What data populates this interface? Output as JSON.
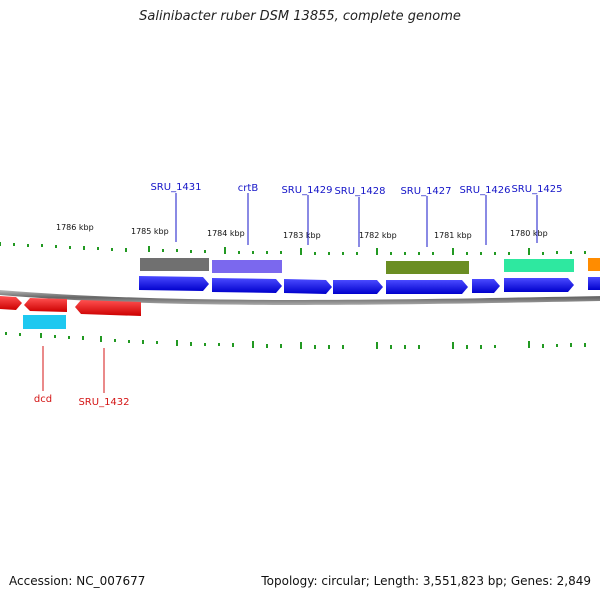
{
  "title": "Salinibacter ruber DSM 13855, complete genome",
  "footer": {
    "accession": "Accession: NC_007677",
    "summary": "Topology: circular; Length: 3,551,823 bp; Genes: 2,849"
  },
  "ruler": {
    "unit": "kbp",
    "labels": [
      {
        "text": "1786 kbp",
        "kbp": 1786
      },
      {
        "text": "1785 kbp",
        "kbp": 1785
      },
      {
        "text": "1784 kbp",
        "kbp": 1784
      },
      {
        "text": "1783 kbp",
        "kbp": 1783
      },
      {
        "text": "1782 kbp",
        "kbp": 1782
      },
      {
        "text": "1781 kbp",
        "kbp": 1781
      },
      {
        "text": "1780 kbp",
        "kbp": 1780
      }
    ]
  },
  "genes": {
    "top_labels": [
      {
        "text": "SRU_1431",
        "color": "#1515c8"
      },
      {
        "text": "crtB",
        "color": "#1515c8"
      },
      {
        "text": "SRU_1429",
        "color": "#1515c8"
      },
      {
        "text": "SRU_1428",
        "color": "#1515c8"
      },
      {
        "text": "SRU_1427",
        "color": "#1515c8"
      },
      {
        "text": "SRU_1426",
        "color": "#1515c8"
      },
      {
        "text": "SRU_1425",
        "color": "#1515c8"
      }
    ],
    "bottom_labels": [
      {
        "text": "dcd",
        "color": "#d41515"
      },
      {
        "text": "SRU_1432",
        "color": "#d41515"
      }
    ]
  },
  "colors": {
    "forward_gene": "#1010ee",
    "reverse_gene": "#ee1010",
    "tick": "#229922",
    "backbone": "#888888",
    "cog_gray": "#707070",
    "cog_slate": "#7b68ee",
    "cog_olive": "#6b8e23",
    "cog_teal": "#2ee8a0",
    "cog_orange": "#ff8c00",
    "cog_cyan": "#1ec8f0"
  }
}
